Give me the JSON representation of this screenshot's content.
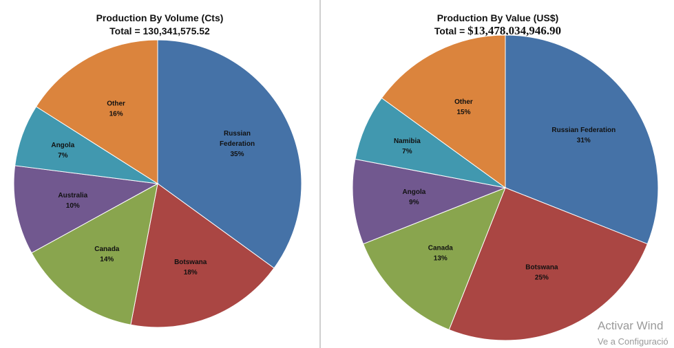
{
  "chart_data": [
    {
      "type": "pie",
      "title": "Production By Volume (Cts)",
      "total_label": "Total =",
      "total_value": "130,341,575.52",
      "slices": [
        {
          "label": "Russian Federation",
          "pct_label": "35%",
          "value": 35,
          "color": "#4572a7"
        },
        {
          "label": "Botswana",
          "pct_label": "18%",
          "value": 18,
          "color": "#aa4643"
        },
        {
          "label": "Canada",
          "pct_label": "14%",
          "value": 14,
          "color": "#89a54e"
        },
        {
          "label": "Australia",
          "pct_label": "10%",
          "value": 10,
          "color": "#71588f"
        },
        {
          "label": "Angola",
          "pct_label": "7%",
          "value": 7,
          "color": "#4198af"
        },
        {
          "label": "Other",
          "pct_label": "16%",
          "value": 16,
          "color": "#db843d"
        }
      ]
    },
    {
      "type": "pie",
      "title": "Production By Value (US$)",
      "total_label": "Total =",
      "total_value": "$13,478,034,946.90",
      "slices": [
        {
          "label": "Russian Federation",
          "pct_label": "31%",
          "value": 31,
          "color": "#4572a7"
        },
        {
          "label": "Botswana",
          "pct_label": "25%",
          "value": 25,
          "color": "#aa4643"
        },
        {
          "label": "Canada",
          "pct_label": "13%",
          "value": 13,
          "color": "#89a54e"
        },
        {
          "label": "Angola",
          "pct_label": "9%",
          "value": 9,
          "color": "#71588f"
        },
        {
          "label": "Namibia",
          "pct_label": "7%",
          "value": 7,
          "color": "#4198af"
        },
        {
          "label": "Other",
          "pct_label": "15%",
          "value": 15,
          "color": "#db843d"
        }
      ]
    }
  ],
  "watermark": {
    "line1": "Activar Wind",
    "line2": "Ve a Configuració"
  }
}
